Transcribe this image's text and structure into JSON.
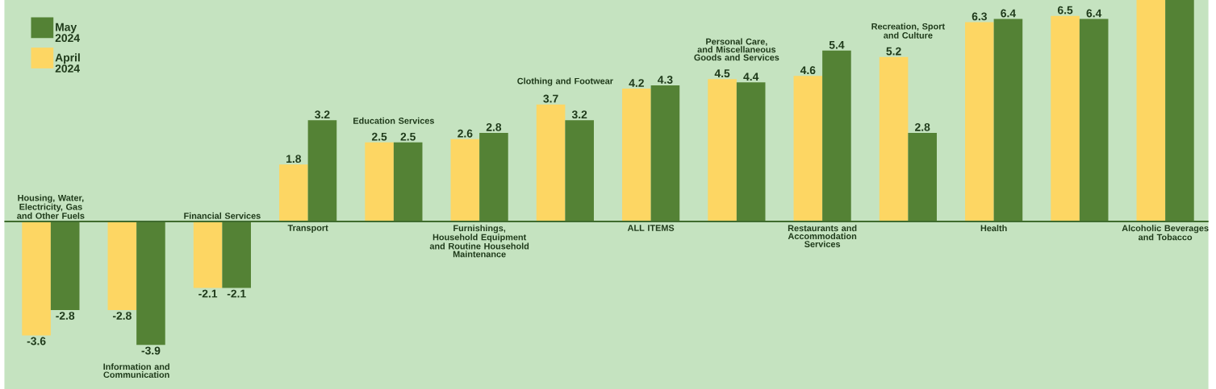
{
  "chart_data": {
    "type": "bar",
    "categories": [
      "Housing, Water, Electricity, Gas and Other Fuels",
      "Information and Communication",
      "Financial Services",
      "Transport",
      "Education Services",
      "Furnishings, Household Equipment and Routine Household Maintenance",
      "Clothing and Footwear",
      "ALL ITEMS",
      "Personal Care, and Miscellaneous Goods and Services",
      "Restaurants and Accommodation Services",
      "Recreation, Sport and Culture",
      "Health",
      null,
      "Alcoholic Beverages and Tobacco"
    ],
    "series": [
      {
        "name": "April 2024",
        "color": "#fdd663",
        "values": [
          -3.6,
          -2.8,
          -2.1,
          1.8,
          2.5,
          2.6,
          3.7,
          4.2,
          4.5,
          4.6,
          5.2,
          6.3,
          6.5,
          7.0
        ],
        "value_labels": [
          "-3.6",
          "-2.8",
          "-2.1",
          "1.8",
          "2.5",
          "2.6",
          "3.7",
          "4.2",
          "4.5",
          "4.6",
          "5.2",
          "6.3",
          "6.5",
          null
        ]
      },
      {
        "name": "May 2024",
        "color": "#548235",
        "values": [
          -2.8,
          -3.9,
          -2.1,
          3.2,
          2.5,
          2.8,
          3.2,
          4.3,
          4.4,
          5.4,
          2.8,
          6.4,
          6.4,
          7.0
        ],
        "value_labels": [
          "-2.8",
          "-3.9",
          "-2.1",
          "3.2",
          "2.5",
          "2.8",
          "3.2",
          "4.3",
          "4.4",
          "5.4",
          "2.8",
          "6.4",
          "6.4",
          null
        ]
      }
    ],
    "ylim": [
      -5.3,
      7.0
    ],
    "legend": "top left"
  }
}
